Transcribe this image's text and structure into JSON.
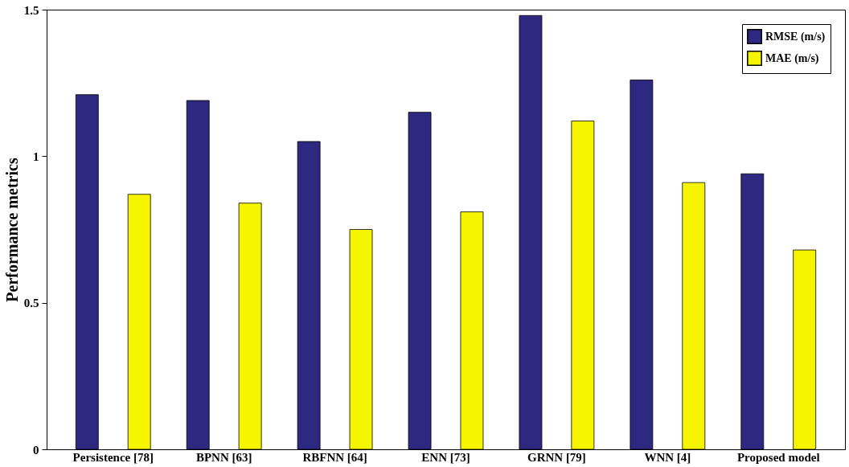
{
  "chart_data": {
    "type": "bar",
    "ylabel": "Performance metrics",
    "categories": [
      "Persistence [78]",
      "BPNN [63]",
      "RBFNN [64]",
      "ENN [73]",
      "GRNN [79]",
      "WNN [4]",
      "Proposed model"
    ],
    "series": [
      {
        "name": "RMSE (m/s)",
        "color": "#2e2880",
        "values": [
          1.21,
          1.19,
          1.05,
          1.15,
          1.48,
          1.26,
          0.94
        ]
      },
      {
        "name": "MAE (m/s)",
        "color": "#f5f500",
        "values": [
          0.87,
          0.84,
          0.75,
          0.81,
          1.12,
          0.91,
          0.68
        ]
      }
    ],
    "ylim": [
      0,
      1.5
    ],
    "yticks": [
      0,
      0.5,
      1,
      1.5
    ],
    "grid": false,
    "legend": "top right"
  }
}
